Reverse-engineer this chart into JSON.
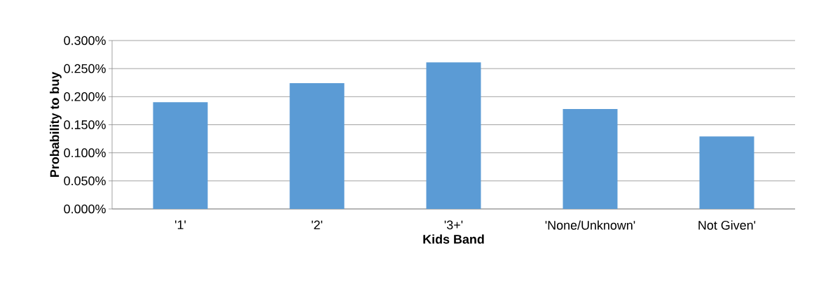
{
  "chart_data": {
    "type": "bar",
    "xlabel": "Kids Band",
    "ylabel": "Probability to buy",
    "categories": [
      "'1'",
      "'2'",
      "'3+'",
      "'None/Unknown'",
      "Not Given'"
    ],
    "values": [
      0.19,
      0.224,
      0.261,
      0.178,
      0.129
    ],
    "color": "#5b9bd5",
    "ylim": [
      0,
      0.3
    ],
    "yticks": [
      {
        "value": 0,
        "label": "0.000%"
      },
      {
        "value": 0.05,
        "label": "0.050%"
      },
      {
        "value": 0.1,
        "label": "0.100%"
      },
      {
        "value": 0.15,
        "label": "0.150%"
      },
      {
        "value": 0.2,
        "label": "0.200%"
      },
      {
        "value": 0.25,
        "label": "0.250%"
      },
      {
        "value": 0.3,
        "label": "0.300%"
      }
    ],
    "grid": "y"
  }
}
